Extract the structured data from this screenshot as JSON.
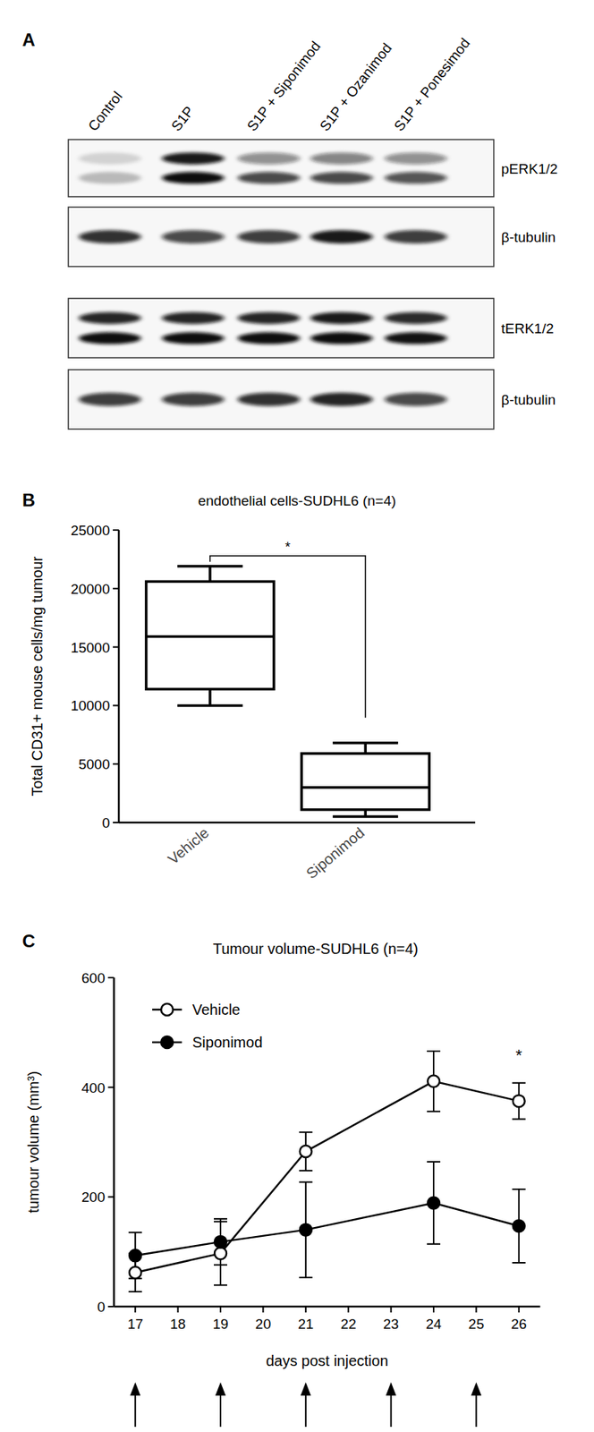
{
  "chart_data": [
    {
      "type": "western_blot",
      "label": "A",
      "categories": [
        "Control",
        "S1P",
        "S1P + Siponimod",
        "S1P + Ozanimod",
        "S1P + Ponesimod"
      ],
      "rows": [
        {
          "name": "pERK1/2",
          "values": [
            [
              0.15,
              0.25
            ],
            [
              0.95,
              1.0
            ],
            [
              0.45,
              0.75
            ],
            [
              0.5,
              0.75
            ],
            [
              0.45,
              0.7
            ]
          ]
        },
        {
          "name": "β-tubulin",
          "values": [
            [
              0.85
            ],
            [
              0.75
            ],
            [
              0.8
            ],
            [
              0.95
            ],
            [
              0.8
            ]
          ]
        },
        {
          "name": "tERK1/2",
          "values": [
            [
              0.9,
              1.0
            ],
            [
              0.9,
              1.0
            ],
            [
              0.9,
              1.0
            ],
            [
              0.95,
              1.0
            ],
            [
              0.88,
              0.98
            ]
          ]
        },
        {
          "name": "β-tubulin",
          "values": [
            [
              0.8
            ],
            [
              0.8
            ],
            [
              0.85
            ],
            [
              0.9
            ],
            [
              0.75
            ]
          ]
        }
      ]
    },
    {
      "type": "box",
      "label": "B",
      "title": "endothelial cells-SUDHL6 (n=4)",
      "y_label": "Total CD31+ mouse cells/mg tumour",
      "categories": [
        "Vehicle",
        "Siponimod"
      ],
      "boxes": [
        {
          "min": 10000,
          "q1": 11400,
          "median": 15900,
          "q3": 20600,
          "max": 21900
        },
        {
          "min": 500,
          "q1": 1100,
          "median": 3000,
          "q3": 5900,
          "max": 6800
        }
      ],
      "ylim": [
        0,
        25000
      ],
      "yticks": [
        0,
        5000,
        10000,
        15000,
        20000,
        25000
      ],
      "annotations": [
        {
          "text": "*",
          "between": [
            0,
            1
          ]
        }
      ]
    },
    {
      "type": "line",
      "label": "C",
      "title": "Tumour volume-SUDHL6 (n=4)",
      "x_label": "days post injection",
      "y_label": "tumour volume (mm³)",
      "x": [
        17,
        19,
        21,
        24,
        26
      ],
      "series": [
        {
          "name": "Vehicle",
          "color": "#000000",
          "marker": "open",
          "values": [
            62,
            97,
            283,
            411,
            375
          ],
          "errors": [
            35,
            58,
            35,
            55,
            33
          ]
        },
        {
          "name": "Siponimod",
          "color": "#000000",
          "marker": "filled",
          "values": [
            93,
            118,
            140,
            189,
            147
          ],
          "errors": [
            42,
            42,
            87,
            75,
            67
          ]
        }
      ],
      "xlim": [
        16.5,
        26.5
      ],
      "xticks": [
        17,
        18,
        19,
        20,
        21,
        22,
        23,
        24,
        25,
        26
      ],
      "ylim": [
        0,
        600
      ],
      "yticks": [
        0,
        200,
        400,
        600
      ],
      "legend": "upper-left",
      "annotations": [
        {
          "text": "*",
          "x": 26
        }
      ],
      "dosing_days": [
        17,
        19,
        21,
        23,
        25
      ]
    }
  ]
}
